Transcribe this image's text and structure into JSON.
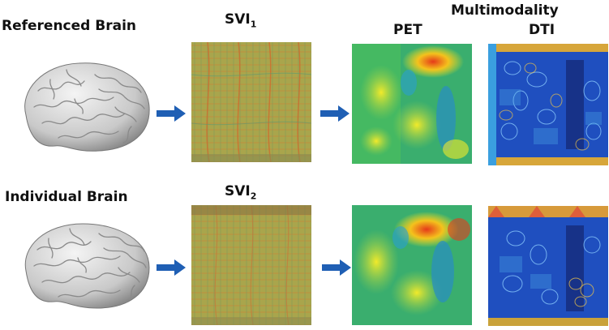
{
  "header": {
    "multimodality": "Multimodality"
  },
  "rows": [
    {
      "brain_label": "Referenced Brain",
      "svi_label": "SVI",
      "svi_index": "1",
      "pet_label": "PET",
      "dti_label": "DTI"
    },
    {
      "brain_label": "Individual Brain",
      "svi_label": "SVI",
      "svi_index": "2"
    }
  ],
  "colors": {
    "arrow": "#1f5fb4",
    "svi_base": "#a8a24a",
    "pet_base": "#36b06a",
    "dti_base": "#1f4fbf"
  }
}
